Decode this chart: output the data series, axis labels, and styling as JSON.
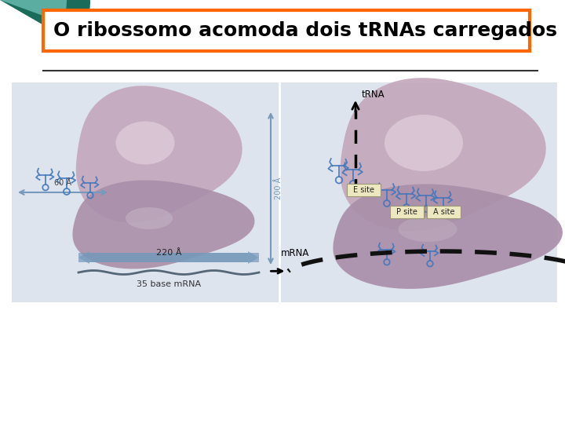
{
  "title": "O ribossomo acomoda dois tRNAs carregados",
  "title_fontsize": 18,
  "title_box_color": "#FF6600",
  "title_text_color": "#000000",
  "background_color": "#FFFFFF",
  "left_panel_bg": "#DDE4EE",
  "right_panel_bg": "#DDE4EE",
  "teal_dark_color": "#1A6B5A",
  "teal_light_color": "#5AADA0",
  "divider_line_color": "#333333",
  "ribosome_upper_color": "#C4A8BC",
  "ribosome_upper_light": "#E8D8E4",
  "ribosome_lower_color": "#AA8FAA",
  "ribosome_lower_dark": "#8A6A8A",
  "trna_color": "#4477BB",
  "arrow_color": "#7799BB",
  "mrna_label": "mRNA",
  "trna_label": "tRNA",
  "esite_label": "E site",
  "psite_label": "P site",
  "asite_label": "A site",
  "label_200A": "200 Å",
  "label_60A": "60 Å",
  "label_220A": "220 Å",
  "label_35base": "35 base mRNA"
}
